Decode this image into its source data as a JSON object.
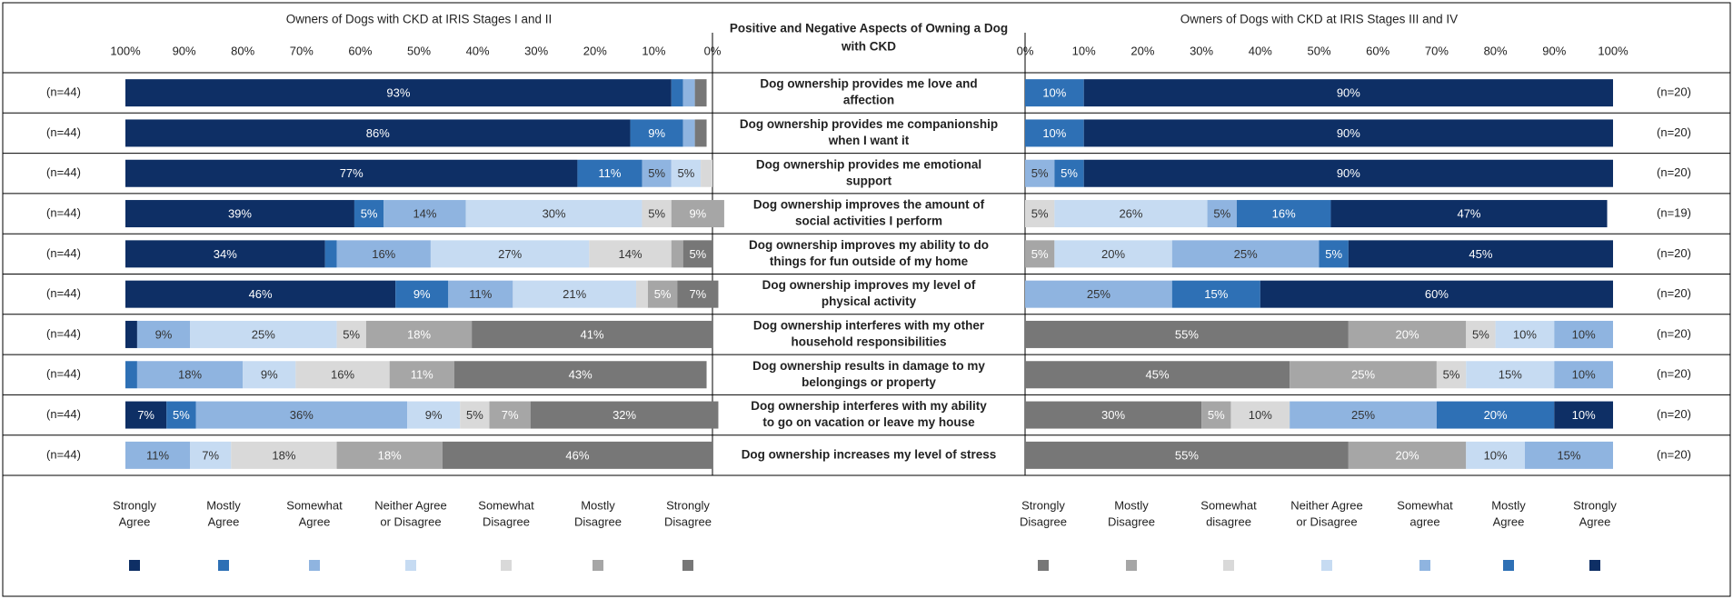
{
  "colors": {
    "sa": "#0e2f65",
    "ma": "#2e70b5",
    "swa": "#8fb4e0",
    "n": "#c6dbf2",
    "swd": "#d9d9d9",
    "md": "#a6a6a6",
    "sd": "#777777",
    "grid": "#000000"
  },
  "chart_data": {
    "type": "bar",
    "subtype": "diverging stacked horizontal bar (butterfly)",
    "center_title": "Positive and Negative Aspects of Owning a Dog with CKD",
    "left_panel": {
      "title": "Owners of Dogs with CKD at IRIS Stages I and II",
      "axis_ticks": [
        "100%",
        "90%",
        "80%",
        "70%",
        "60%",
        "50%",
        "40%",
        "30%",
        "20%",
        "10%",
        "0%"
      ],
      "xlim": [
        100,
        0
      ],
      "stack_order": [
        "Strongly Agree",
        "Mostly Agree",
        "Somewhat Agree",
        "Neither Agree or Disagree",
        "Somewhat Disagree",
        "Mostly Disagree",
        "Strongly Disagree"
      ],
      "legend": [
        {
          "label": "Strongly Agree",
          "key": "sa"
        },
        {
          "label": "Mostly Agree",
          "key": "ma"
        },
        {
          "label": "Somewhat Agree",
          "key": "swa"
        },
        {
          "label": "Neither Agree or Disagree",
          "key": "n"
        },
        {
          "label": "Somewhat Disagree",
          "key": "swd"
        },
        {
          "label": "Mostly Disagree",
          "key": "md"
        },
        {
          "label": "Strongly Disagree",
          "key": "sd"
        }
      ]
    },
    "right_panel": {
      "title": "Owners of Dogs with CKD at IRIS Stages III and IV",
      "axis_ticks": [
        "0%",
        "10%",
        "20%",
        "30%",
        "40%",
        "50%",
        "60%",
        "70%",
        "80%",
        "90%",
        "100%"
      ],
      "xlim": [
        0,
        100
      ],
      "stack_order": [
        "Strongly Disagree",
        "Mostly Disagree",
        "Somewhat disagree",
        "Neither Agree or Disagree",
        "Somewhat agree",
        "Mostly Agree",
        "Strongly Agree"
      ],
      "legend": [
        {
          "label": "Strongly Disagree",
          "key": "sd"
        },
        {
          "label": "Mostly Disagree",
          "key": "md"
        },
        {
          "label": "Somewhat disagree",
          "key": "swd"
        },
        {
          "label": "Neither Agree or Disagree",
          "key": "n"
        },
        {
          "label": "Somewhat agree",
          "key": "swa"
        },
        {
          "label": "Mostly Agree",
          "key": "ma"
        },
        {
          "label": "Strongly Agree",
          "key": "sa"
        }
      ]
    },
    "rows": [
      {
        "statement": "Dog ownership provides me love and affection",
        "left_n": "(n=44)",
        "right_n": "(n=20)",
        "left": [
          {
            "k": "sa",
            "v": 93,
            "l": "93%"
          },
          {
            "k": "ma",
            "v": 2,
            "l": ""
          },
          {
            "k": "swa",
            "v": 2,
            "l": ""
          },
          {
            "k": "sd",
            "v": 2,
            "l": ""
          }
        ],
        "right": [
          {
            "k": "ma",
            "v": 10,
            "l": "10%"
          },
          {
            "k": "sa",
            "v": 90,
            "l": "90%"
          }
        ]
      },
      {
        "statement": "Dog ownership provides me companionship when I want it",
        "left_n": "(n=44)",
        "right_n": "(n=20)",
        "left": [
          {
            "k": "sa",
            "v": 86,
            "l": "86%"
          },
          {
            "k": "ma",
            "v": 9,
            "l": "9%"
          },
          {
            "k": "swa",
            "v": 2,
            "l": ""
          },
          {
            "k": "sd",
            "v": 2,
            "l": ""
          }
        ],
        "right": [
          {
            "k": "ma",
            "v": 10,
            "l": "10%"
          },
          {
            "k": "sa",
            "v": 90,
            "l": "90%"
          }
        ]
      },
      {
        "statement": "Dog ownership provides me emotional support",
        "left_n": "(n=44)",
        "right_n": "(n=20)",
        "left": [
          {
            "k": "sa",
            "v": 77,
            "l": "77%"
          },
          {
            "k": "ma",
            "v": 11,
            "l": "11%"
          },
          {
            "k": "swa",
            "v": 5,
            "l": "5%"
          },
          {
            "k": "n",
            "v": 5,
            "l": "5%"
          },
          {
            "k": "swd",
            "v": 2,
            "l": ""
          }
        ],
        "right": [
          {
            "k": "swa",
            "v": 5,
            "l": "5%"
          },
          {
            "k": "ma",
            "v": 5,
            "l": "5%"
          },
          {
            "k": "sa",
            "v": 90,
            "l": "90%"
          }
        ]
      },
      {
        "statement": "Dog ownership improves the amount of social activities I perform",
        "left_n": "(n=44)",
        "right_n": "(n=19)",
        "left": [
          {
            "k": "sa",
            "v": 39,
            "l": "39%"
          },
          {
            "k": "ma",
            "v": 5,
            "l": "5%"
          },
          {
            "k": "swa",
            "v": 14,
            "l": "14%"
          },
          {
            "k": "n",
            "v": 30,
            "l": "30%"
          },
          {
            "k": "swd",
            "v": 5,
            "l": "5%"
          },
          {
            "k": "md",
            "v": 9,
            "l": "9%"
          }
        ],
        "right": [
          {
            "k": "swd",
            "v": 5,
            "l": "5%"
          },
          {
            "k": "n",
            "v": 26,
            "l": "26%"
          },
          {
            "k": "swa",
            "v": 5,
            "l": "5%"
          },
          {
            "k": "ma",
            "v": 16,
            "l": "16%"
          },
          {
            "k": "sa",
            "v": 47,
            "l": "47%"
          }
        ]
      },
      {
        "statement": "Dog ownership improves my ability to do things for fun outside of my home",
        "left_n": "(n=44)",
        "right_n": "(n=20)",
        "left": [
          {
            "k": "sa",
            "v": 34,
            "l": "34%"
          },
          {
            "k": "ma",
            "v": 2,
            "l": ""
          },
          {
            "k": "swa",
            "v": 16,
            "l": "16%"
          },
          {
            "k": "n",
            "v": 27,
            "l": "27%"
          },
          {
            "k": "swd",
            "v": 14,
            "l": "14%"
          },
          {
            "k": "md",
            "v": 2,
            "l": ""
          },
          {
            "k": "sd",
            "v": 5,
            "l": "5%"
          }
        ],
        "right": [
          {
            "k": "md",
            "v": 5,
            "l": "5%"
          },
          {
            "k": "n",
            "v": 20,
            "l": "20%"
          },
          {
            "k": "swa",
            "v": 25,
            "l": "25%"
          },
          {
            "k": "ma",
            "v": 5,
            "l": "5%"
          },
          {
            "k": "sa",
            "v": 45,
            "l": "45%"
          }
        ]
      },
      {
        "statement": "Dog ownership improves my level of physical activity",
        "left_n": "(n=44)",
        "right_n": "(n=20)",
        "left": [
          {
            "k": "sa",
            "v": 46,
            "l": "46%"
          },
          {
            "k": "ma",
            "v": 9,
            "l": "9%"
          },
          {
            "k": "swa",
            "v": 11,
            "l": "11%"
          },
          {
            "k": "n",
            "v": 21,
            "l": "21%"
          },
          {
            "k": "swd",
            "v": 2,
            "l": ""
          },
          {
            "k": "md",
            "v": 5,
            "l": "5%"
          },
          {
            "k": "sd",
            "v": 7,
            "l": "7%"
          }
        ],
        "right": [
          {
            "k": "swa",
            "v": 25,
            "l": "25%"
          },
          {
            "k": "ma",
            "v": 15,
            "l": "15%"
          },
          {
            "k": "sa",
            "v": 60,
            "l": "60%"
          }
        ]
      },
      {
        "statement": "Dog ownership interferes with my other household responsibilities",
        "left_n": "(n=44)",
        "right_n": "(n=20)",
        "left": [
          {
            "k": "sa",
            "v": 2,
            "l": ""
          },
          {
            "k": "swa",
            "v": 9,
            "l": "9%"
          },
          {
            "k": "n",
            "v": 25,
            "l": "25%"
          },
          {
            "k": "swd",
            "v": 5,
            "l": "5%"
          },
          {
            "k": "md",
            "v": 18,
            "l": "18%"
          },
          {
            "k": "sd",
            "v": 41,
            "l": "41%"
          }
        ],
        "right": [
          {
            "k": "sd",
            "v": 55,
            "l": "55%"
          },
          {
            "k": "md",
            "v": 20,
            "l": "20%"
          },
          {
            "k": "swd",
            "v": 5,
            "l": "5%"
          },
          {
            "k": "n",
            "v": 10,
            "l": "10%"
          },
          {
            "k": "swa",
            "v": 10,
            "l": "10%"
          }
        ]
      },
      {
        "statement": "Dog ownership results in damage to my belongings or property",
        "left_n": "(n=44)",
        "right_n": "(n=20)",
        "left": [
          {
            "k": "ma",
            "v": 2,
            "l": ""
          },
          {
            "k": "swa",
            "v": 18,
            "l": "18%"
          },
          {
            "k": "n",
            "v": 9,
            "l": "9%"
          },
          {
            "k": "swd",
            "v": 16,
            "l": "16%"
          },
          {
            "k": "md",
            "v": 11,
            "l": "11%"
          },
          {
            "k": "sd",
            "v": 43,
            "l": "43%"
          }
        ],
        "right": [
          {
            "k": "sd",
            "v": 45,
            "l": "45%"
          },
          {
            "k": "md",
            "v": 25,
            "l": "25%"
          },
          {
            "k": "swd",
            "v": 5,
            "l": "5%"
          },
          {
            "k": "n",
            "v": 15,
            "l": "15%"
          },
          {
            "k": "swa",
            "v": 10,
            "l": "10%"
          }
        ]
      },
      {
        "statement": "Dog ownership interferes with my ability to go on vacation or leave my house",
        "left_n": "(n=44)",
        "right_n": "(n=20)",
        "left": [
          {
            "k": "sa",
            "v": 7,
            "l": "7%"
          },
          {
            "k": "ma",
            "v": 5,
            "l": "5%"
          },
          {
            "k": "swa",
            "v": 36,
            "l": "36%"
          },
          {
            "k": "n",
            "v": 9,
            "l": "9%"
          },
          {
            "k": "swd",
            "v": 5,
            "l": "5%"
          },
          {
            "k": "md",
            "v": 7,
            "l": "7%"
          },
          {
            "k": "sd",
            "v": 32,
            "l": "32%"
          }
        ],
        "right": [
          {
            "k": "sd",
            "v": 30,
            "l": "30%"
          },
          {
            "k": "md",
            "v": 5,
            "l": "5%"
          },
          {
            "k": "swd",
            "v": 10,
            "l": "10%"
          },
          {
            "k": "swa",
            "v": 25,
            "l": "25%"
          },
          {
            "k": "ma",
            "v": 20,
            "l": "20%"
          },
          {
            "k": "sa",
            "v": 10,
            "l": "10%"
          }
        ]
      },
      {
        "statement": "Dog ownership increases my level of stress",
        "left_n": "(n=44)",
        "right_n": "(n=20)",
        "left": [
          {
            "k": "swa",
            "v": 11,
            "l": "11%"
          },
          {
            "k": "n",
            "v": 7,
            "l": "7%"
          },
          {
            "k": "swd",
            "v": 18,
            "l": "18%"
          },
          {
            "k": "md",
            "v": 18,
            "l": "18%"
          },
          {
            "k": "sd",
            "v": 46,
            "l": "46%"
          }
        ],
        "right": [
          {
            "k": "sd",
            "v": 55,
            "l": "55%"
          },
          {
            "k": "md",
            "v": 20,
            "l": "20%"
          },
          {
            "k": "n",
            "v": 10,
            "l": "10%"
          },
          {
            "k": "swa",
            "v": 15,
            "l": "15%"
          }
        ]
      }
    ]
  }
}
